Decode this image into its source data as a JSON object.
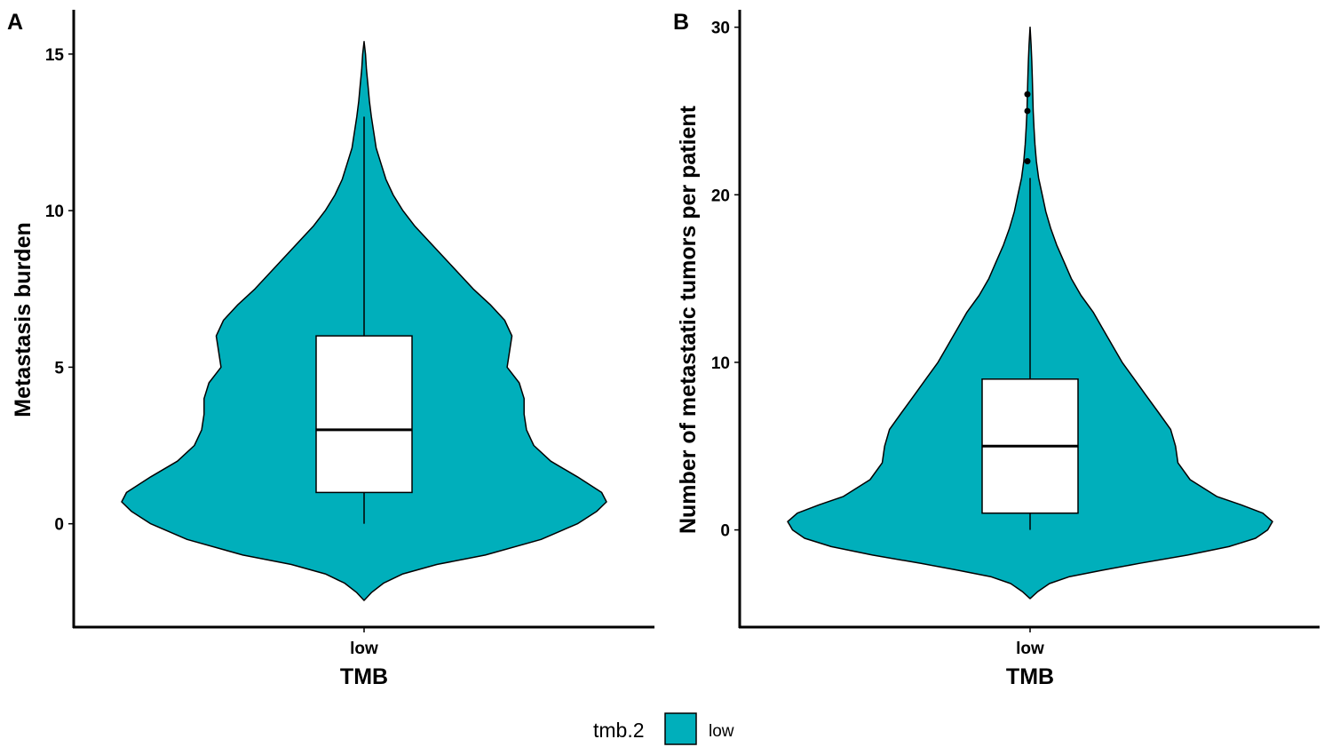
{
  "chart_data": [
    {
      "type": "violin",
      "panel_tag": "A",
      "xlabel": "TMB",
      "ylabel": "Metastasis burden",
      "categories": [
        "low"
      ],
      "ylim": [
        -3.3,
        16.5
      ],
      "yticks": [
        0,
        5,
        10,
        15
      ],
      "fill_color": "#00AFBB",
      "violin": {
        "y": [
          -2.45,
          -2.2,
          -1.9,
          -1.6,
          -1.3,
          -1.0,
          -0.5,
          0.0,
          0.4,
          0.7,
          1.0,
          1.5,
          2.0,
          2.5,
          3.0,
          3.5,
          4.0,
          4.5,
          5.0,
          5.5,
          6.0,
          6.5,
          7.0,
          7.5,
          8.0,
          8.5,
          9.0,
          9.5,
          10.0,
          10.5,
          11.0,
          11.5,
          12.0,
          12.5,
          13.0,
          13.5,
          14.0,
          14.5,
          15.0,
          15.4
        ],
        "density": [
          0.0,
          0.03,
          0.08,
          0.16,
          0.3,
          0.5,
          0.73,
          0.88,
          0.96,
          1.0,
          0.98,
          0.88,
          0.77,
          0.7,
          0.67,
          0.66,
          0.66,
          0.64,
          0.59,
          0.6,
          0.61,
          0.58,
          0.52,
          0.45,
          0.39,
          0.33,
          0.27,
          0.21,
          0.16,
          0.12,
          0.09,
          0.07,
          0.05,
          0.04,
          0.03,
          0.022,
          0.016,
          0.01,
          0.006,
          0.0
        ]
      },
      "box": {
        "q1": 1,
        "median": 3,
        "q3": 6,
        "whisker_low": 0,
        "whisker_high": 13,
        "outliers": []
      }
    },
    {
      "type": "violin",
      "panel_tag": "B",
      "xlabel": "TMB",
      "ylabel": "Number of metastatic tumors per patient",
      "categories": [
        "low"
      ],
      "ylim": [
        -5.8,
        31.2
      ],
      "yticks": [
        0,
        10,
        20,
        30
      ],
      "fill_color": "#00AFBB",
      "violin": {
        "y": [
          -4.1,
          -3.7,
          -3.2,
          -2.8,
          -2.4,
          -2.0,
          -1.5,
          -1.0,
          -0.5,
          0.0,
          0.5,
          1.0,
          1.5,
          2.0,
          3.0,
          4.0,
          5.0,
          6.0,
          7.0,
          8.0,
          9.0,
          10.0,
          11.0,
          12.0,
          13.0,
          14.0,
          15.0,
          16.0,
          17.0,
          18.0,
          19.0,
          20.0,
          21.0,
          22.0,
          23.0,
          24.0,
          25.0,
          26.0,
          27.0,
          28.0,
          29.0,
          30.0
        ],
        "density": [
          0.0,
          0.03,
          0.08,
          0.16,
          0.3,
          0.45,
          0.65,
          0.82,
          0.93,
          0.98,
          1.0,
          0.96,
          0.87,
          0.77,
          0.66,
          0.61,
          0.6,
          0.58,
          0.53,
          0.48,
          0.43,
          0.38,
          0.34,
          0.3,
          0.26,
          0.21,
          0.17,
          0.14,
          0.11,
          0.085,
          0.065,
          0.05,
          0.035,
          0.026,
          0.02,
          0.016,
          0.013,
          0.011,
          0.009,
          0.007,
          0.004,
          0.0
        ]
      },
      "box": {
        "q1": 1,
        "median": 5,
        "q3": 9,
        "whisker_low": 0,
        "whisker_high": 21,
        "outliers": [
          22,
          25,
          26
        ]
      }
    }
  ],
  "legend": {
    "title": "tmb.2",
    "items": [
      {
        "label": "low",
        "color": "#00AFBB"
      }
    ]
  }
}
